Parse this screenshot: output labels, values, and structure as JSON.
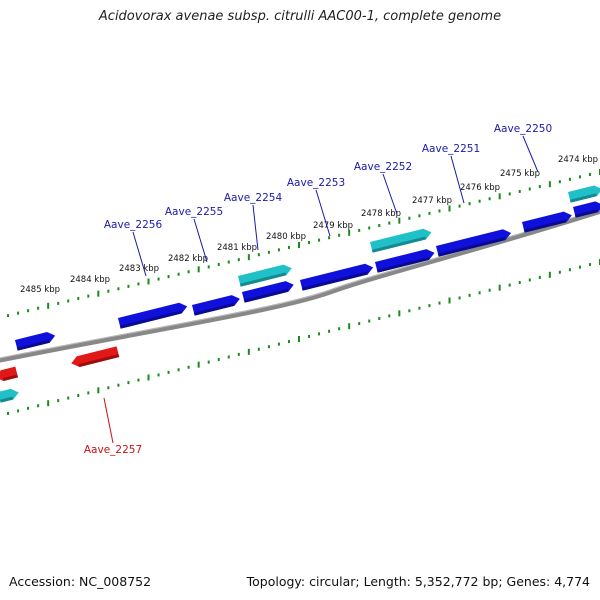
{
  "title": "Acidovorax avenae subsp. citrulli AAC00-1, complete genome",
  "footer": {
    "accession": "Accession: NC_008752",
    "summary": "Topology: circular; Length: 5,352,772 bp; Genes: 4,774"
  },
  "colors": {
    "forward_gene": "#1010dd",
    "reverse_gene": "#e01818",
    "rna_gene": "#20c0c8",
    "backbone": "#808080",
    "ruler": "#1a8a1a",
    "label_forward": "#1a1aaa",
    "label_reverse": "#cc1111"
  },
  "ruler_labels": [
    "2474 kbp",
    "2475 kbp",
    "2476 kbp",
    "2477 kbp",
    "2478 kbp",
    "2479 kbp",
    "2480 kbp",
    "2481 kbp",
    "2482 kbp",
    "2483 kbp",
    "2484 kbp",
    "2485 kbp"
  ],
  "gene_labels": [
    {
      "name": "Aave_2250",
      "strand": "forward"
    },
    {
      "name": "Aave_2251",
      "strand": "forward"
    },
    {
      "name": "Aave_2252",
      "strand": "forward"
    },
    {
      "name": "Aave_2253",
      "strand": "forward"
    },
    {
      "name": "Aave_2254",
      "strand": "forward"
    },
    {
      "name": "Aave_2255",
      "strand": "forward"
    },
    {
      "name": "Aave_2256",
      "strand": "forward"
    },
    {
      "name": "Aave_2257",
      "strand": "reverse"
    }
  ]
}
